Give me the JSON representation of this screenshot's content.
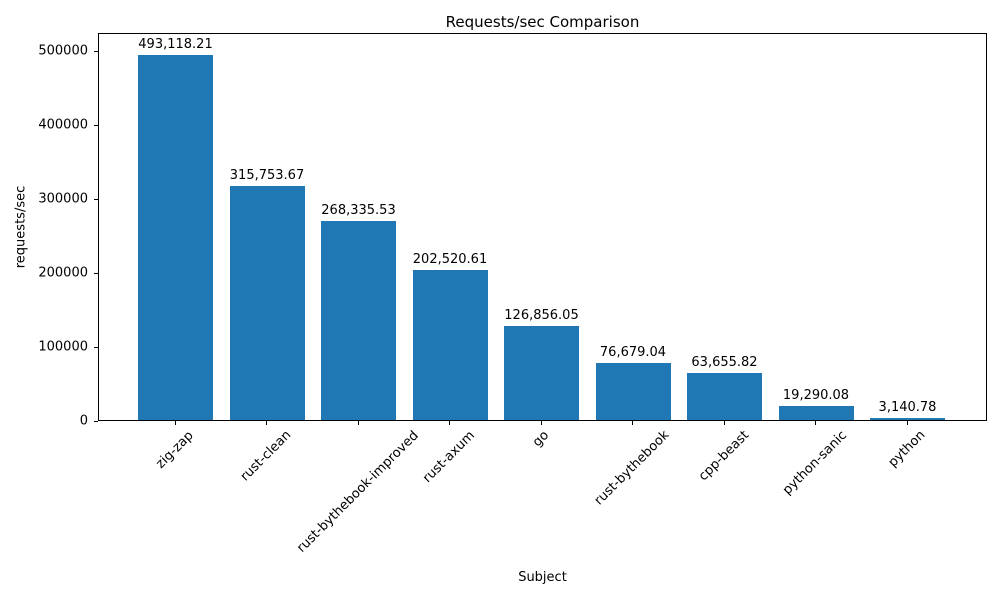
{
  "chart_data": {
    "type": "bar",
    "title": "Requests/sec Comparison",
    "xlabel": "Subject",
    "ylabel": "requests/sec",
    "categories": [
      "zig-zap",
      "rust-clean",
      "rust-bythebook-improved",
      "rust-axum",
      "go",
      "rust-bythebook",
      "cpp-beast",
      "python-sanic",
      "python"
    ],
    "values": [
      493118.21,
      315753.67,
      268335.53,
      202520.61,
      126856.05,
      76679.04,
      63655.82,
      19290.08,
      3140.78
    ],
    "value_labels": [
      "493,118.21",
      "315,753.67",
      "268,335.53",
      "202,520.61",
      "126,856.05",
      "76,679.04",
      "63,655.82",
      "19,290.08",
      "3,140.78"
    ],
    "y_ticks": [
      0,
      100000,
      200000,
      300000,
      400000,
      500000
    ],
    "ylim": [
      0,
      524324
    ],
    "bar_color": "#1f77b4",
    "grid": false,
    "legend": null,
    "x_tick_rotation": 45
  }
}
